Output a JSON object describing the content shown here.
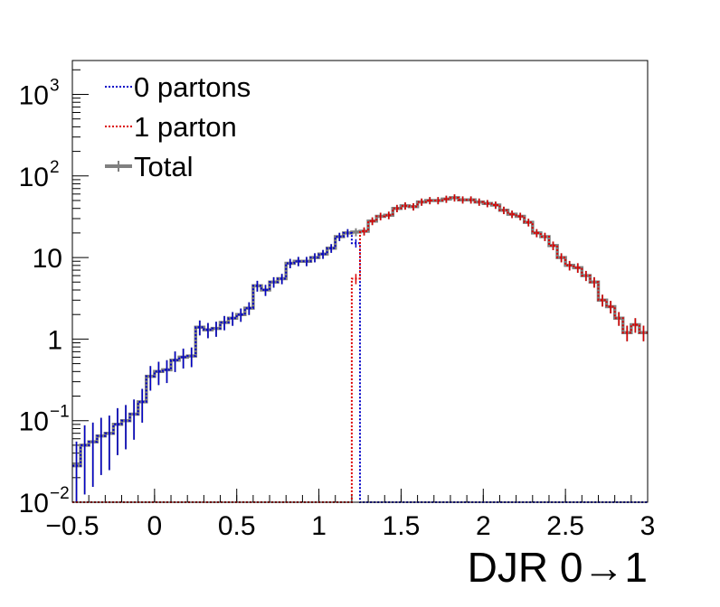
{
  "chart_data": {
    "type": "line",
    "step": true,
    "title": "",
    "xlabel": "DJR 0→1",
    "ylabel": "",
    "xlim": [
      -0.5,
      3.0
    ],
    "ylim": [
      0.01,
      2600
    ],
    "log_y": true,
    "grid": false,
    "legend_position": "top-left",
    "x_tick_labels": [
      {
        "value": -0.5,
        "label": "−0.5"
      },
      {
        "value": 0,
        "label": "0"
      },
      {
        "value": 0.5,
        "label": "0.5"
      },
      {
        "value": 1,
        "label": "1"
      },
      {
        "value": 1.5,
        "label": "1.5"
      },
      {
        "value": 2,
        "label": "2"
      },
      {
        "value": 2.5,
        "label": "2.5"
      },
      {
        "value": 3,
        "label": "3"
      }
    ],
    "y_tick_labels": [
      {
        "value": 0.01,
        "base": "10",
        "exp": "−2"
      },
      {
        "value": 0.1,
        "base": "10",
        "exp": "−1"
      },
      {
        "value": 1,
        "base": "1",
        "exp": ""
      },
      {
        "value": 10,
        "base": "10",
        "exp": ""
      },
      {
        "value": 100,
        "base": "10",
        "exp": "2"
      },
      {
        "value": 1000,
        "base": "10",
        "exp": "3"
      }
    ],
    "x_edges": [
      -0.5,
      -0.45,
      -0.4,
      -0.35,
      -0.3,
      -0.25,
      -0.2,
      -0.15,
      -0.1,
      -0.05,
      0.0,
      0.05,
      0.1,
      0.15,
      0.2,
      0.25,
      0.3,
      0.35,
      0.4,
      0.45,
      0.5,
      0.55,
      0.6,
      0.65,
      0.7,
      0.75,
      0.8,
      0.85,
      0.9,
      0.95,
      1.0,
      1.05,
      1.1,
      1.15,
      1.2,
      1.25,
      1.3,
      1.35,
      1.4,
      1.45,
      1.5,
      1.55,
      1.6,
      1.65,
      1.7,
      1.75,
      1.8,
      1.85,
      1.9,
      1.95,
      2.0,
      2.05,
      2.1,
      2.15,
      2.2,
      2.25,
      2.3,
      2.35,
      2.4,
      2.45,
      2.5,
      2.55,
      2.6,
      2.65,
      2.7,
      2.75,
      2.8,
      2.85,
      2.9,
      2.95,
      3.0
    ],
    "series": [
      {
        "name": "0 partons",
        "color": "#0000c8",
        "style": "dotted",
        "values": [
          0.028,
          0.05,
          0.055,
          0.065,
          0.07,
          0.09,
          0.1,
          0.12,
          0.17,
          0.35,
          0.4,
          0.42,
          0.55,
          0.6,
          0.62,
          1.4,
          1.3,
          1.35,
          1.6,
          1.8,
          2.0,
          2.4,
          4.5,
          4.0,
          5.0,
          5.5,
          8.5,
          9.0,
          9.0,
          10.0,
          11.0,
          13.0,
          18.0,
          20.0,
          15.0,
          0.0,
          0,
          0,
          0,
          0,
          0,
          0,
          0,
          0,
          0,
          0,
          0,
          0,
          0,
          0,
          0,
          0,
          0,
          0,
          0,
          0,
          0,
          0,
          0,
          0,
          0,
          0,
          0,
          0,
          0,
          0,
          0,
          0,
          0,
          0
        ]
      },
      {
        "name": "1 parton",
        "color": "#dc0000",
        "style": "dotted",
        "values": [
          0,
          0,
          0,
          0,
          0,
          0,
          0,
          0,
          0,
          0,
          0,
          0,
          0,
          0,
          0,
          0,
          0,
          0,
          0,
          0,
          0,
          0,
          0,
          0,
          0,
          0,
          0,
          0,
          0,
          0,
          0,
          0,
          0,
          0,
          5.5,
          21.0,
          28.0,
          32.0,
          33.0,
          40.0,
          43.0,
          42.0,
          48.0,
          50.0,
          50.0,
          52.0,
          54.0,
          51.0,
          51.0,
          48.0,
          46.0,
          44.0,
          38.0,
          34.0,
          32.0,
          27.0,
          20.0,
          18.0,
          14.0,
          10.0,
          8.0,
          7.5,
          6.0,
          5.0,
          3.0,
          2.5,
          1.8,
          1.2,
          1.5,
          1.2
        ]
      },
      {
        "name": "Total",
        "color": "#808080",
        "style": "solid",
        "values": [
          0.028,
          0.05,
          0.055,
          0.065,
          0.07,
          0.09,
          0.1,
          0.12,
          0.17,
          0.35,
          0.4,
          0.42,
          0.55,
          0.6,
          0.62,
          1.4,
          1.3,
          1.35,
          1.6,
          1.8,
          2.0,
          2.4,
          4.5,
          4.0,
          5.0,
          5.5,
          8.5,
          9.0,
          9.0,
          10.0,
          11.0,
          13.0,
          18.0,
          20.0,
          20.5,
          21.0,
          28.0,
          32.0,
          33.0,
          40.0,
          43.0,
          42.0,
          48.0,
          50.0,
          50.0,
          52.0,
          54.0,
          51.0,
          51.0,
          48.0,
          46.0,
          44.0,
          38.0,
          34.0,
          32.0,
          27.0,
          20.0,
          18.0,
          14.0,
          10.0,
          8.0,
          7.5,
          6.0,
          5.0,
          3.0,
          2.5,
          1.8,
          1.2,
          1.5,
          1.2
        ]
      }
    ]
  }
}
